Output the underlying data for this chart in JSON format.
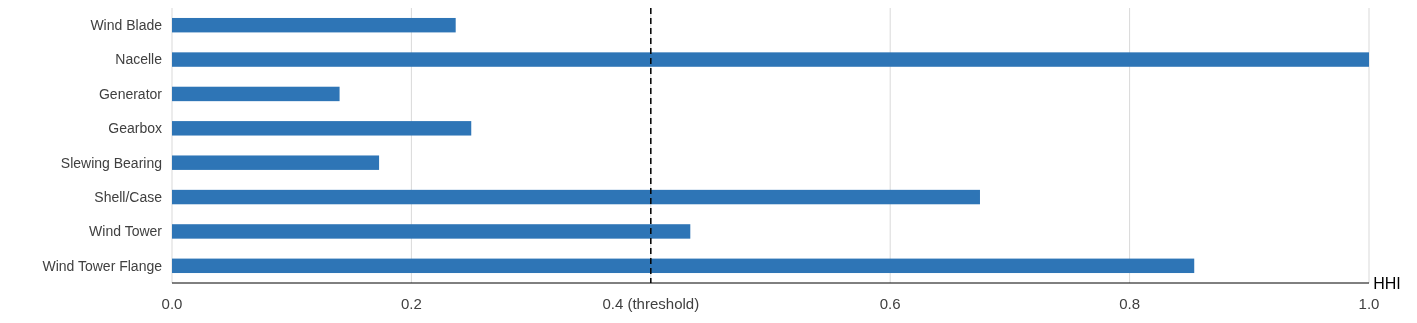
{
  "chart_data": {
    "type": "bar",
    "orientation": "horizontal",
    "xlabel": "HHI",
    "categories": [
      "Wind Blade",
      "Nacelle",
      "Generator",
      "Gearbox",
      "Slewing Bearing",
      "Shell/Case",
      "Wind Tower",
      "Wind Tower Flange"
    ],
    "values": [
      0.237,
      1.0,
      0.14,
      0.25,
      0.173,
      0.675,
      0.433,
      0.854
    ],
    "color": "#2e75b6",
    "xlim": [
      0,
      1.0
    ],
    "xticks": [
      {
        "value": 0,
        "label": "0.0"
      },
      0.2,
      {
        "value": 0.4,
        "label": "0.4 (threshold)"
      },
      0.6,
      0.8,
      {
        "value": 1,
        "label": "1.0"
      }
    ],
    "grid": "x",
    "ref_lines": [
      {
        "axis": "x",
        "value": 0.4,
        "color": "#000000",
        "line_style": "dashed"
      }
    ]
  }
}
